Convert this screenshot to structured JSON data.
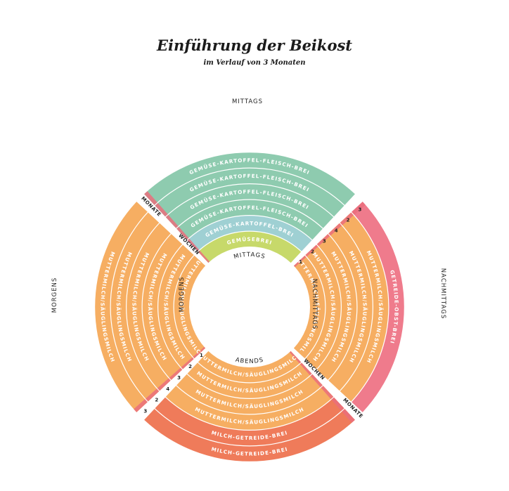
{
  "title": "Einführung der Beikost",
  "subtitle": "im Verlauf von 3 Monaten",
  "colors": {
    "green_dark": "#8ecbaf",
    "blue": "#9fd0d3",
    "lime": "#c7d96a",
    "orange": "#f6ae62",
    "salmon": "#ef7b5a",
    "pink": "#ef7b8c",
    "tick_pink": "#ea6f7c",
    "tick_yellow": "#f4e59a",
    "tick_green": "#c7d96a"
  },
  "periods": {
    "mittags": "MITTAGS",
    "nachmittags": "NACHMITTAGS",
    "abends": "ABENDS",
    "morgens": "MORGENS"
  },
  "gap_labels": {
    "wochen": "WOCHEN",
    "monate": "MONATE"
  },
  "scale_numbers": [
    "1",
    "2",
    "3",
    "4",
    "2",
    "3"
  ],
  "quadrants": {
    "mittags": [
      "GEMÜSEBREI",
      "GEMÜSE-KARTOFFEL-BREI",
      "GEMÜSE-KARTOFFEL-FLEISCH-BREI",
      "GEMÜSE-KARTOFFEL-FLEISCH-BREI",
      "GEMÜSE-KARTOFFEL-FLEISCH-BREI",
      "GEMÜSE-KARTOFFEL-FLEISCH-BREI"
    ],
    "nachmittags": [
      "MUTTERMILCH/SÄUGLINGSMILCH",
      "MUTTERMILCH/SÄUGLINGSMILCH",
      "MUTTERMILCH/SÄUGLINGSMILCH",
      "MUTTERMILCH/SÄUGLINGSMILCH",
      "MUTTERMILCH/SÄUGLINGSMILCH",
      "GETREIDE-OBST-BREI"
    ],
    "abends": [
      "MUTTERMILCH/SÄUGLINGSMILCH",
      "MUTTERMILCH/SÄUGLINGSMILCH",
      "MUTTERMILCH/SÄUGLINGSMILCH",
      "MUTTERMILCH/SÄUGLINGSMILCH",
      "MILCH-GETREIDE-BREI",
      "MILCH-GETREIDE-BREI"
    ],
    "morgens": [
      "MUTTERMILCH/SÄUGLINGSMILCH",
      "MUTTERMILCH/SÄUGLINGSMILCH",
      "MUTTERMILCH/SÄUGLINGSMILCH",
      "MUTTERMILCH/SÄUGLINGSMILCH",
      "MUTTERMILCH/SÄUGLINGSMILCH",
      "MUTTERMILCH/SÄUGLINGSMILCH"
    ]
  }
}
